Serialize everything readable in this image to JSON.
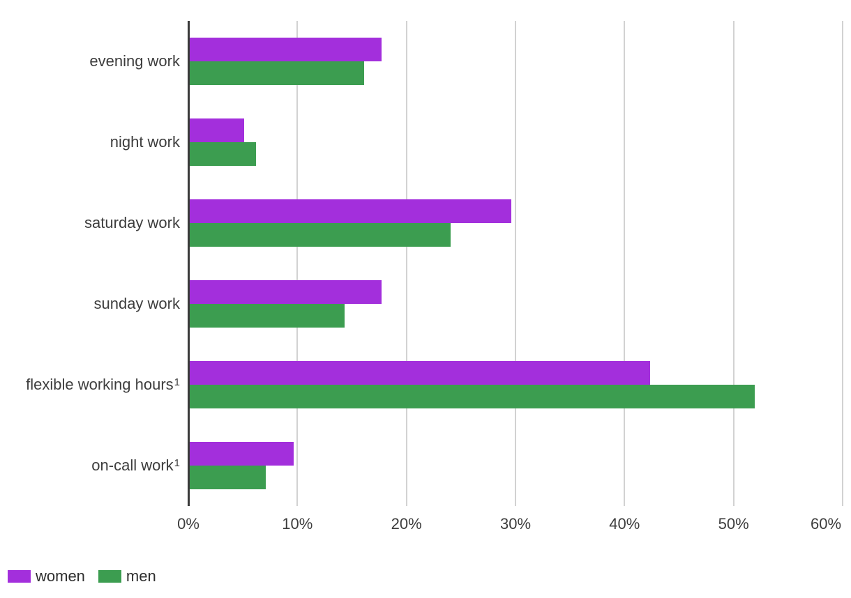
{
  "chart_data": {
    "type": "bar",
    "orientation": "horizontal",
    "title": "",
    "categories": [
      {
        "label": "evening work",
        "sup": ""
      },
      {
        "label": "night work",
        "sup": ""
      },
      {
        "label": "saturday work",
        "sup": ""
      },
      {
        "label": "sunday work",
        "sup": ""
      },
      {
        "label": "flexible working hours",
        "sup": "1"
      },
      {
        "label": "on-call work",
        "sup": "1"
      }
    ],
    "series": [
      {
        "name": "women",
        "color": "#a32fdc",
        "values": [
          17.6,
          5.0,
          29.5,
          17.6,
          42.2,
          9.5
        ]
      },
      {
        "name": "men",
        "color": "#3c9d50",
        "values": [
          16.0,
          6.1,
          23.9,
          14.2,
          51.8,
          7.0
        ]
      }
    ],
    "x_axis": {
      "min": 0,
      "max": 60,
      "tick_step": 10,
      "unit": "%",
      "tick_labels": [
        "0%",
        "10%",
        "20%",
        "30%",
        "40%",
        "50%",
        "60%"
      ]
    },
    "grid": true,
    "legend_position": "bottom-left",
    "colors": {
      "axis_line": "#3a3a3a",
      "gridline": "#d2d2d2",
      "text": "#3d3d3d",
      "background": "#ffffff"
    }
  }
}
